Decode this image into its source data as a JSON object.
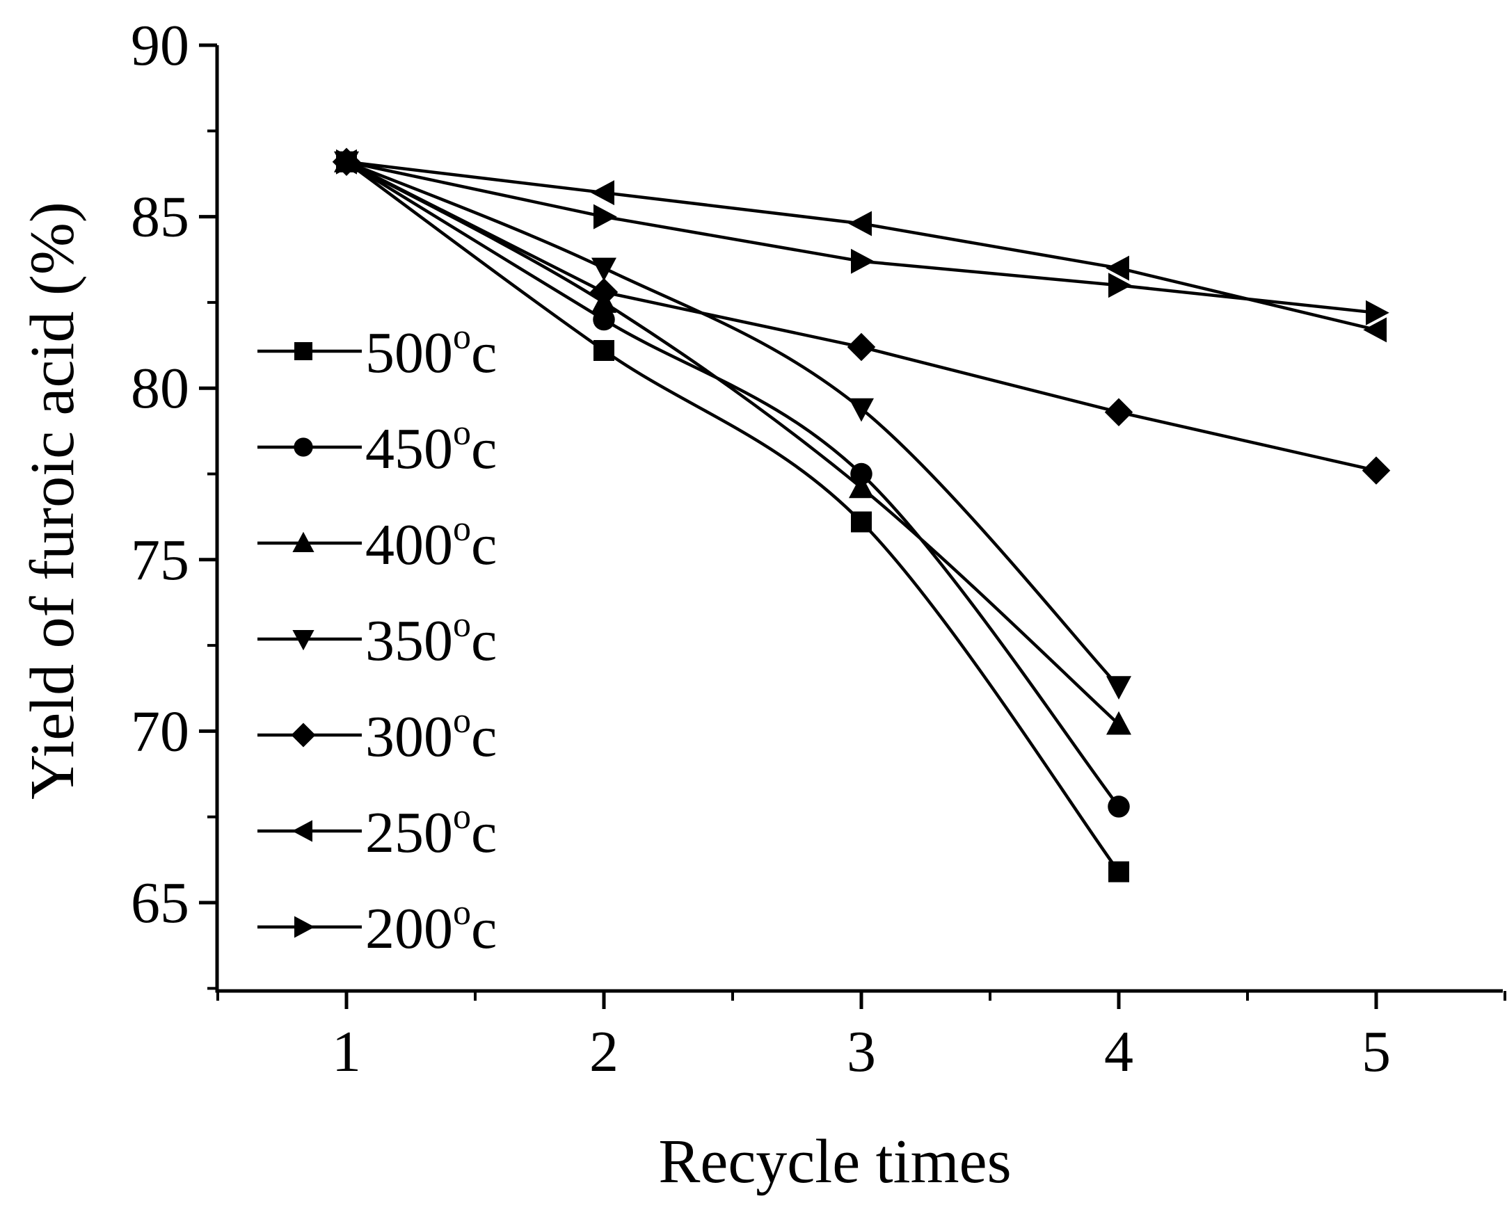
{
  "chart_data": {
    "type": "line",
    "title": "",
    "xlabel": "Recycle times",
    "ylabel": "Yield of furoic acid (%)",
    "xlim": [
      0.5,
      5.5
    ],
    "ylim": [
      62.5,
      90
    ],
    "x_ticks": [
      1,
      2,
      3,
      4,
      5
    ],
    "y_ticks": [
      65,
      70,
      75,
      80,
      85,
      90
    ],
    "x_tick_labels": [
      "1",
      "2",
      "3",
      "4",
      "5"
    ],
    "y_tick_labels": [
      "65",
      "70",
      "75",
      "80",
      "85",
      "90"
    ],
    "grid": false,
    "legend_position": "left",
    "series": [
      {
        "name": "500",
        "unit_sup": "o",
        "unit": "c",
        "marker": "square",
        "x": [
          1,
          2,
          3,
          4
        ],
        "values": [
          86.6,
          81.1,
          76.1,
          65.9
        ]
      },
      {
        "name": "450",
        "unit_sup": "o",
        "unit": "c",
        "marker": "circle",
        "x": [
          1,
          2,
          3,
          4
        ],
        "values": [
          86.6,
          82.0,
          77.5,
          67.8
        ]
      },
      {
        "name": "400",
        "unit_sup": "o",
        "unit": "c",
        "marker": "triangle-up",
        "x": [
          1,
          2,
          3,
          4
        ],
        "values": [
          86.6,
          82.5,
          77.1,
          70.2
        ]
      },
      {
        "name": "350",
        "unit_sup": "o",
        "unit": "c",
        "marker": "triangle-down",
        "x": [
          1,
          2,
          3,
          4
        ],
        "values": [
          86.6,
          83.5,
          79.4,
          71.3
        ]
      },
      {
        "name": "300",
        "unit_sup": "o",
        "unit": "c",
        "marker": "diamond",
        "x": [
          1,
          2,
          3,
          4,
          5
        ],
        "values": [
          86.6,
          82.8,
          81.2,
          79.3,
          77.6
        ]
      },
      {
        "name": "250",
        "unit_sup": "o",
        "unit": "c",
        "marker": "triangle-left",
        "x": [
          1,
          2,
          3,
          4,
          5
        ],
        "values": [
          86.6,
          85.7,
          84.8,
          83.5,
          81.7
        ]
      },
      {
        "name": "200",
        "unit_sup": "o",
        "unit": "c",
        "marker": "triangle-right",
        "x": [
          1,
          2,
          3,
          4,
          5
        ],
        "values": [
          86.6,
          85.0,
          83.7,
          83.0,
          82.2
        ]
      }
    ]
  }
}
